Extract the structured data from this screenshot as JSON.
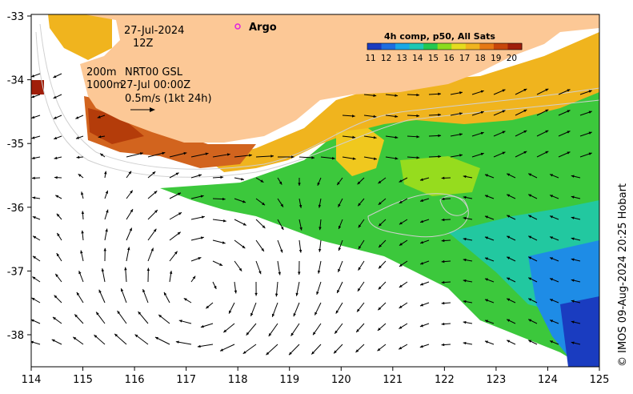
{
  "map": {
    "date": "27-Jul-2024",
    "hour": "12Z",
    "argo_label": "Argo",
    "depth_contour_1": "200m",
    "depth_contour_2": "1000m",
    "altimetry_label": "NRT00 GSL",
    "altimetry_time": "27-Jul 00:00Z",
    "scale_label": "0.5m/s (1kt 24h)",
    "credit": "© IMOS 09-Aug-2024 20:25 Hobart",
    "colorbar": {
      "title": "4h comp, p50, All Sats",
      "ticks": [
        "11",
        "12",
        "13",
        "14",
        "15",
        "16",
        "17",
        "18",
        "19",
        "20"
      ],
      "colors": [
        "#1a3cc0",
        "#1e6ee0",
        "#1aa8e6",
        "#1ec8b4",
        "#22c850",
        "#8cdc1e",
        "#e6dc1e",
        "#f0b41e",
        "#e67814",
        "#c8460a",
        "#a01e0a"
      ]
    },
    "lon_ticks": [
      "114",
      "115",
      "116",
      "117",
      "118",
      "119",
      "120",
      "121",
      "122",
      "123",
      "124",
      "125"
    ],
    "lat_ticks": [
      "-33",
      "-34",
      "-35",
      "-36",
      "-37",
      "-38"
    ],
    "land_color": "#fcc896"
  }
}
